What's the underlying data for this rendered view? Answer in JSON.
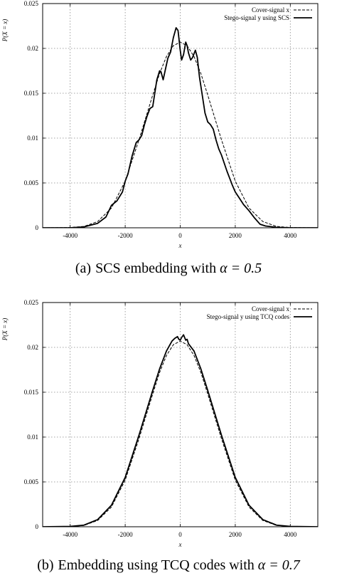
{
  "chart_data": [
    {
      "type": "line",
      "panel_label": "(a)",
      "caption": "SCS embedding with",
      "caption_math": "α = 0.5",
      "xlabel": "x",
      "ylabel": "P(X = x)",
      "xlim": [
        -5000,
        5000
      ],
      "ylim": [
        0,
        0.025
      ],
      "xticks": [
        "-4000",
        "-2000",
        "0",
        "2000",
        "4000"
      ],
      "xtick_values": [
        -4000,
        -2000,
        0,
        2000,
        4000
      ],
      "yticks": [
        "0",
        "0.005",
        "0.01",
        "0.015",
        "0.02",
        "0.025"
      ],
      "ytick_values": [
        0,
        0.005,
        0.01,
        0.015,
        0.02,
        0.025
      ],
      "grid": true,
      "legend_position": "top-right",
      "series": [
        {
          "name": "Cover-signal x",
          "style": "dashed",
          "points": [
            [
              -5000,
              0
            ],
            [
              -4000,
              3e-05
            ],
            [
              -3500,
              0.00015
            ],
            [
              -3000,
              0.0007
            ],
            [
              -2500,
              0.0022
            ],
            [
              -2000,
              0.0052
            ],
            [
              -1500,
              0.0098
            ],
            [
              -1000,
              0.0148
            ],
            [
              -750,
              0.0172
            ],
            [
              -500,
              0.0191
            ],
            [
              -250,
              0.0203
            ],
            [
              0,
              0.0207
            ],
            [
              250,
              0.0203
            ],
            [
              500,
              0.0191
            ],
            [
              750,
              0.0172
            ],
            [
              1000,
              0.0148
            ],
            [
              1500,
              0.0098
            ],
            [
              2000,
              0.0052
            ],
            [
              2500,
              0.0022
            ],
            [
              3000,
              0.0007
            ],
            [
              3500,
              0.00015
            ],
            [
              4000,
              3e-05
            ],
            [
              5000,
              0
            ]
          ]
        },
        {
          "name": "Stego-signal y using SCS",
          "style": "solid",
          "points": [
            [
              -5000,
              0
            ],
            [
              -4000,
              0
            ],
            [
              -3500,
              0.0001
            ],
            [
              -3000,
              0.0005
            ],
            [
              -2700,
              0.0012
            ],
            [
              -2500,
              0.0025
            ],
            [
              -2300,
              0.003
            ],
            [
              -2100,
              0.004
            ],
            [
              -2000,
              0.0052
            ],
            [
              -1900,
              0.006
            ],
            [
              -1750,
              0.008
            ],
            [
              -1600,
              0.0095
            ],
            [
              -1500,
              0.0098
            ],
            [
              -1400,
              0.0103
            ],
            [
              -1300,
              0.0115
            ],
            [
              -1200,
              0.0125
            ],
            [
              -1100,
              0.0133
            ],
            [
              -1000,
              0.0135
            ],
            [
              -950,
              0.0145
            ],
            [
              -850,
              0.0165
            ],
            [
              -750,
              0.0175
            ],
            [
              -700,
              0.0174
            ],
            [
              -620,
              0.0165
            ],
            [
              -550,
              0.0175
            ],
            [
              -450,
              0.0189
            ],
            [
              -350,
              0.0196
            ],
            [
              -250,
              0.0212
            ],
            [
              -150,
              0.0223
            ],
            [
              -80,
              0.022
            ],
            [
              0,
              0.0198
            ],
            [
              50,
              0.0187
            ],
            [
              120,
              0.0193
            ],
            [
              200,
              0.0207
            ],
            [
              250,
              0.0203
            ],
            [
              300,
              0.0195
            ],
            [
              380,
              0.0187
            ],
            [
              450,
              0.019
            ],
            [
              550,
              0.0198
            ],
            [
              620,
              0.019
            ],
            [
              700,
              0.0168
            ],
            [
              800,
              0.0148
            ],
            [
              900,
              0.0128
            ],
            [
              1000,
              0.0118
            ],
            [
              1100,
              0.0115
            ],
            [
              1200,
              0.011
            ],
            [
              1300,
              0.0098
            ],
            [
              1400,
              0.0088
            ],
            [
              1500,
              0.0081
            ],
            [
              1600,
              0.0072
            ],
            [
              1700,
              0.0063
            ],
            [
              1800,
              0.0055
            ],
            [
              1900,
              0.0047
            ],
            [
              2000,
              0.004
            ],
            [
              2150,
              0.0033
            ],
            [
              2300,
              0.0026
            ],
            [
              2500,
              0.0019
            ],
            [
              2700,
              0.0011
            ],
            [
              2900,
              0.0004
            ],
            [
              3100,
              0.0002
            ],
            [
              3500,
              5e-05
            ],
            [
              4000,
              0
            ],
            [
              5000,
              0
            ]
          ]
        }
      ]
    },
    {
      "type": "line",
      "panel_label": "(b)",
      "caption": "Embedding using TCQ codes with",
      "caption_math": "α = 0.7",
      "xlabel": "x",
      "ylabel": "P(X = x)",
      "xlim": [
        -5000,
        5000
      ],
      "ylim": [
        0,
        0.025
      ],
      "xticks": [
        "-4000",
        "-2000",
        "0",
        "2000",
        "4000"
      ],
      "xtick_values": [
        -4000,
        -2000,
        0,
        2000,
        4000
      ],
      "yticks": [
        "0",
        "0.005",
        "0.01",
        "0.015",
        "0.02",
        "0.025"
      ],
      "ytick_values": [
        0,
        0.005,
        0.01,
        0.015,
        0.02,
        0.025
      ],
      "grid": true,
      "legend_position": "top-right",
      "series": [
        {
          "name": "Cover-signal x",
          "style": "dashed",
          "points": [
            [
              -5000,
              0
            ],
            [
              -4000,
              3e-05
            ],
            [
              -3500,
              0.00015
            ],
            [
              -3000,
              0.0007
            ],
            [
              -2500,
              0.0022
            ],
            [
              -2000,
              0.0052
            ],
            [
              -1500,
              0.0098
            ],
            [
              -1000,
              0.0148
            ],
            [
              -750,
              0.0172
            ],
            [
              -500,
              0.0191
            ],
            [
              -250,
              0.0203
            ],
            [
              0,
              0.0207
            ],
            [
              250,
              0.0203
            ],
            [
              500,
              0.0191
            ],
            [
              750,
              0.0172
            ],
            [
              1000,
              0.0148
            ],
            [
              1500,
              0.0098
            ],
            [
              2000,
              0.0052
            ],
            [
              2500,
              0.0022
            ],
            [
              3000,
              0.0007
            ],
            [
              3500,
              0.00015
            ],
            [
              4000,
              3e-05
            ],
            [
              5000,
              0
            ]
          ]
        },
        {
          "name": "Stego-signal y using TCQ codes",
          "style": "solid",
          "points": [
            [
              -5000,
              0
            ],
            [
              -4000,
              4e-05
            ],
            [
              -3500,
              0.00018
            ],
            [
              -3000,
              0.0008
            ],
            [
              -2500,
              0.0024
            ],
            [
              -2000,
              0.0055
            ],
            [
              -1500,
              0.0102
            ],
            [
              -1000,
              0.0152
            ],
            [
              -750,
              0.0176
            ],
            [
              -500,
              0.0196
            ],
            [
              -300,
              0.0207
            ],
            [
              -200,
              0.021
            ],
            [
              -100,
              0.0212
            ],
            [
              -50,
              0.0209
            ],
            [
              0,
              0.0208
            ],
            [
              50,
              0.0211
            ],
            [
              120,
              0.0214
            ],
            [
              200,
              0.0208
            ],
            [
              250,
              0.0209
            ],
            [
              300,
              0.0204
            ],
            [
              500,
              0.0196
            ],
            [
              750,
              0.0176
            ],
            [
              1000,
              0.0152
            ],
            [
              1500,
              0.0102
            ],
            [
              2000,
              0.0055
            ],
            [
              2500,
              0.0024
            ],
            [
              3000,
              0.0008
            ],
            [
              3500,
              0.00018
            ],
            [
              4000,
              4e-05
            ],
            [
              5000,
              0
            ]
          ]
        }
      ]
    }
  ]
}
